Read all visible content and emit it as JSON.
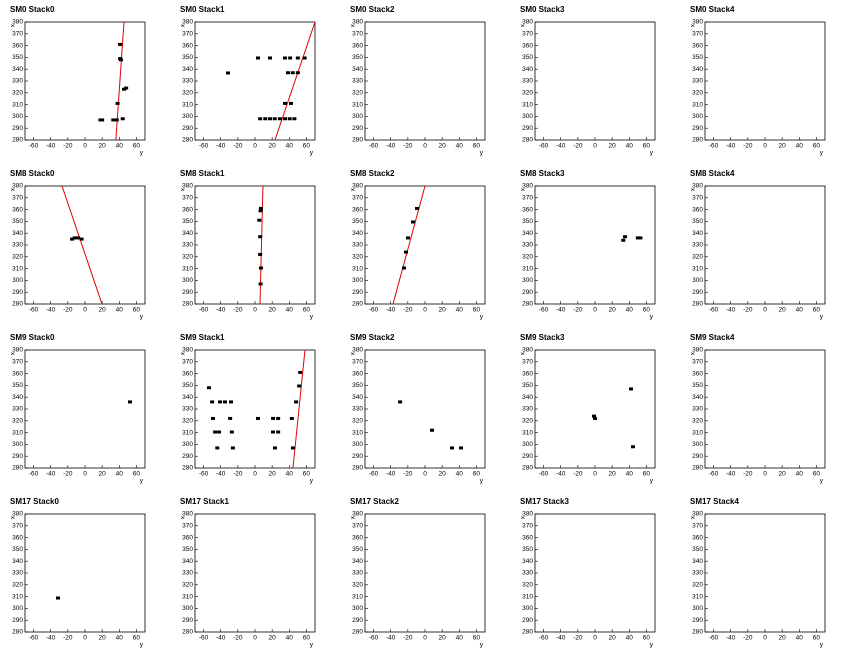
{
  "chart_data": [
    {
      "type": "scatter",
      "title": "SM0 Stack0",
      "x_label": "y",
      "y_label": "x",
      "xlim": [
        -70,
        70
      ],
      "ylim": [
        280,
        380
      ],
      "xticks": [
        -60,
        -40,
        -20,
        0,
        20,
        40,
        60
      ],
      "yticks": [
        280,
        290,
        300,
        310,
        320,
        330,
        340,
        350,
        360,
        370,
        380
      ],
      "color": "#000000",
      "x": [
        18,
        20,
        33,
        37,
        44,
        38,
        45.5,
        48,
        41,
        42,
        41
      ],
      "y": [
        297,
        297,
        297,
        297,
        298,
        311,
        323,
        324,
        349,
        348,
        361
      ],
      "fit": {
        "x": [
          36,
          45.5
        ],
        "y": [
          280,
          380
        ],
        "color": "#e00000"
      }
    },
    {
      "type": "scatter",
      "title": "SM0 Stack1",
      "x_label": "y",
      "y_label": "x",
      "xlim": [
        -70,
        70
      ],
      "ylim": [
        280,
        380
      ],
      "xticks": [
        -60,
        -40,
        -20,
        0,
        20,
        40,
        60
      ],
      "yticks": [
        280,
        290,
        300,
        310,
        320,
        330,
        340,
        350,
        360,
        370,
        380
      ],
      "color": "#000000",
      "x": [
        -31.5,
        3.5,
        17.5,
        35,
        41,
        50,
        58,
        38.5,
        44,
        50,
        35,
        42,
        6,
        12,
        17.5,
        23,
        29,
        35,
        40.5,
        46
      ],
      "y": [
        336.8,
        349.5,
        349.5,
        349.5,
        349.5,
        349.5,
        349.5,
        337,
        337,
        337,
        311,
        311,
        298,
        298,
        298,
        298,
        298,
        298,
        298,
        298
      ],
      "fit": {
        "x": [
          23.3,
          70
        ],
        "y": [
          280,
          380
        ],
        "color": "#e00000"
      }
    },
    {
      "type": "scatter",
      "title": "SM0 Stack2",
      "x_label": "y",
      "y_label": "x",
      "xlim": [
        -70,
        70
      ],
      "ylim": [
        280,
        380
      ],
      "xticks": [
        -60,
        -40,
        -20,
        0,
        20,
        40,
        60
      ],
      "yticks": [
        280,
        290,
        300,
        310,
        320,
        330,
        340,
        350,
        360,
        370,
        380
      ],
      "color": "#000000",
      "x": [],
      "y": []
    },
    {
      "type": "scatter",
      "title": "SM0 Stack3",
      "x_label": "y",
      "y_label": "x",
      "xlim": [
        -70,
        70
      ],
      "ylim": [
        280,
        380
      ],
      "xticks": [
        -60,
        -40,
        -20,
        0,
        20,
        40,
        60
      ],
      "yticks": [
        280,
        290,
        300,
        310,
        320,
        330,
        340,
        350,
        360,
        370,
        380
      ],
      "color": "#000000",
      "x": [],
      "y": []
    },
    {
      "type": "scatter",
      "title": "SM0 Stack4",
      "x_label": "y",
      "y_label": "x",
      "xlim": [
        -70,
        70
      ],
      "ylim": [
        280,
        380
      ],
      "xticks": [
        -60,
        -40,
        -20,
        0,
        20,
        40,
        60
      ],
      "yticks": [
        280,
        290,
        300,
        310,
        320,
        330,
        340,
        350,
        360,
        370,
        380
      ],
      "color": "#000000",
      "x": [],
      "y": []
    },
    {
      "type": "scatter",
      "title": "SM8 Stack0",
      "x_label": "y",
      "y_label": "x",
      "xlim": [
        -70,
        70
      ],
      "ylim": [
        280,
        380
      ],
      "xticks": [
        -60,
        -40,
        -20,
        0,
        20,
        40,
        60
      ],
      "yticks": [
        280,
        290,
        300,
        310,
        320,
        330,
        340,
        350,
        360,
        370,
        380
      ],
      "color": "#000000",
      "x": [
        -15,
        -12,
        -8,
        -4
      ],
      "y": [
        335,
        336,
        336,
        335
      ],
      "fit": {
        "x": [
          -26.8,
          19.8
        ],
        "y": [
          380,
          280
        ],
        "color": "#e00000"
      }
    },
    {
      "type": "scatter",
      "title": "SM8 Stack1",
      "x_label": "y",
      "y_label": "x",
      "xlim": [
        -70,
        70
      ],
      "ylim": [
        280,
        380
      ],
      "xticks": [
        -60,
        -40,
        -20,
        0,
        20,
        40,
        60
      ],
      "yticks": [
        280,
        290,
        300,
        310,
        320,
        330,
        340,
        350,
        360,
        370,
        380
      ],
      "color": "#000000",
      "x": [
        7,
        6.5,
        5,
        6,
        6,
        7,
        6.5
      ],
      "y": [
        361,
        359,
        351,
        337,
        322,
        310.5,
        297
      ],
      "fit": {
        "x": [
          9.3,
          5.8
        ],
        "y": [
          380,
          280
        ],
        "color": "#e00000"
      }
    },
    {
      "type": "scatter",
      "title": "SM8 Stack2",
      "x_label": "y",
      "y_label": "x",
      "xlim": [
        -70,
        70
      ],
      "ylim": [
        280,
        380
      ],
      "xticks": [
        -60,
        -40,
        -20,
        0,
        20,
        40,
        60
      ],
      "yticks": [
        280,
        290,
        300,
        310,
        320,
        330,
        340,
        350,
        360,
        370,
        380
      ],
      "color": "#000000",
      "x": [
        -9.3,
        -14,
        -19.8,
        -22.2,
        -24.5
      ],
      "y": [
        361,
        349.5,
        336,
        324,
        310.5
      ],
      "fit": {
        "x": [
          0,
          -37.3
        ],
        "y": [
          380,
          280
        ],
        "color": "#e00000"
      }
    },
    {
      "type": "scatter",
      "title": "SM8 Stack3",
      "x_label": "y",
      "y_label": "x",
      "xlim": [
        -70,
        70
      ],
      "ylim": [
        280,
        380
      ],
      "xticks": [
        -60,
        -40,
        -20,
        0,
        20,
        40,
        60
      ],
      "yticks": [
        280,
        290,
        300,
        310,
        320,
        330,
        340,
        350,
        360,
        370,
        380
      ],
      "color": "#000000",
      "x": [
        33,
        35,
        50,
        53
      ],
      "y": [
        334,
        337,
        336,
        336
      ]
    },
    {
      "type": "scatter",
      "title": "SM8 Stack4",
      "x_label": "y",
      "y_label": "x",
      "xlim": [
        -70,
        70
      ],
      "ylim": [
        280,
        380
      ],
      "xticks": [
        -60,
        -40,
        -20,
        0,
        20,
        40,
        60
      ],
      "yticks": [
        280,
        290,
        300,
        310,
        320,
        330,
        340,
        350,
        360,
        370,
        380
      ],
      "color": "#000000",
      "x": [],
      "y": []
    },
    {
      "type": "scatter",
      "title": "SM9 Stack0",
      "x_label": "y",
      "y_label": "x",
      "xlim": [
        -70,
        70
      ],
      "ylim": [
        280,
        380
      ],
      "xticks": [
        -60,
        -40,
        -20,
        0,
        20,
        40,
        60
      ],
      "yticks": [
        280,
        290,
        300,
        310,
        320,
        330,
        340,
        350,
        360,
        370,
        380
      ],
      "color": "#000000",
      "x": [
        52.5
      ],
      "y": [
        336
      ]
    },
    {
      "type": "scatter",
      "title": "SM9 Stack1",
      "x_label": "y",
      "y_label": "x",
      "xlim": [
        -70,
        70
      ],
      "ylim": [
        280,
        380
      ],
      "xticks": [
        -60,
        -40,
        -20,
        0,
        20,
        40,
        60
      ],
      "yticks": [
        280,
        290,
        300,
        310,
        320,
        330,
        340,
        350,
        360,
        370,
        380
      ],
      "color": "#000000",
      "x": [
        -53.7,
        -50,
        -40.8,
        -35,
        -28,
        -49,
        -29,
        -46.5,
        -42,
        -27,
        -44,
        -25.8,
        3.5,
        21,
        27,
        21,
        27,
        23.3,
        43,
        44.3,
        48,
        51.5,
        52.7
      ],
      "y": [
        348,
        336,
        336,
        336,
        336,
        322,
        322,
        310.5,
        310.5,
        310.5,
        297,
        297,
        322,
        322,
        322,
        310.5,
        310.5,
        297,
        322,
        297,
        336,
        349.5,
        361
      ],
      "fit": {
        "x": [
          44.3,
          58.3
        ],
        "y": [
          280,
          380
        ],
        "color": "#e00000"
      }
    },
    {
      "type": "scatter",
      "title": "SM9 Stack2",
      "x_label": "y",
      "y_label": "x",
      "xlim": [
        -70,
        70
      ],
      "ylim": [
        280,
        380
      ],
      "xticks": [
        -60,
        -40,
        -20,
        0,
        20,
        40,
        60
      ],
      "yticks": [
        280,
        290,
        300,
        310,
        320,
        330,
        340,
        350,
        360,
        370,
        380
      ],
      "color": "#000000",
      "x": [
        -29,
        8.2,
        31.5,
        42
      ],
      "y": [
        336,
        312,
        297,
        297
      ]
    },
    {
      "type": "scatter",
      "title": "SM9 Stack3",
      "x_label": "y",
      "y_label": "x",
      "xlim": [
        -70,
        70
      ],
      "ylim": [
        280,
        380
      ],
      "xticks": [
        -60,
        -40,
        -20,
        0,
        20,
        40,
        60
      ],
      "yticks": [
        280,
        290,
        300,
        310,
        320,
        330,
        340,
        350,
        360,
        370,
        380
      ],
      "color": "#000000",
      "x": [
        -1.2,
        0,
        42,
        44.3
      ],
      "y": [
        324,
        322,
        347,
        298
      ]
    },
    {
      "type": "scatter",
      "title": "SM9 Stack4",
      "x_label": "y",
      "y_label": "x",
      "xlim": [
        -70,
        70
      ],
      "ylim": [
        280,
        380
      ],
      "xticks": [
        -60,
        -40,
        -20,
        0,
        20,
        40,
        60
      ],
      "yticks": [
        280,
        290,
        300,
        310,
        320,
        330,
        340,
        350,
        360,
        370,
        380
      ],
      "color": "#000000",
      "x": [],
      "y": []
    },
    {
      "type": "scatter",
      "title": "SM17 Stack0",
      "x_label": "y",
      "y_label": "x",
      "xlim": [
        -70,
        70
      ],
      "ylim": [
        280,
        380
      ],
      "xticks": [
        -60,
        -40,
        -20,
        0,
        20,
        40,
        60
      ],
      "yticks": [
        280,
        290,
        300,
        310,
        320,
        330,
        340,
        350,
        360,
        370,
        380
      ],
      "color": "#000000",
      "x": [
        -31.5
      ],
      "y": [
        308.8
      ]
    },
    {
      "type": "scatter",
      "title": "SM17 Stack1",
      "x_label": "y",
      "y_label": "x",
      "xlim": [
        -70,
        70
      ],
      "ylim": [
        280,
        380
      ],
      "xticks": [
        -60,
        -40,
        -20,
        0,
        20,
        40,
        60
      ],
      "yticks": [
        280,
        290,
        300,
        310,
        320,
        330,
        340,
        350,
        360,
        370,
        380
      ],
      "color": "#000000",
      "x": [],
      "y": []
    },
    {
      "type": "scatter",
      "title": "SM17 Stack2",
      "x_label": "y",
      "y_label": "x",
      "xlim": [
        -70,
        70
      ],
      "ylim": [
        280,
        380
      ],
      "xticks": [
        -60,
        -40,
        -20,
        0,
        20,
        40,
        60
      ],
      "yticks": [
        280,
        290,
        300,
        310,
        320,
        330,
        340,
        350,
        360,
        370,
        380
      ],
      "color": "#000000",
      "x": [],
      "y": []
    },
    {
      "type": "scatter",
      "title": "SM17 Stack3",
      "x_label": "y",
      "y_label": "x",
      "xlim": [
        -70,
        70
      ],
      "ylim": [
        280,
        380
      ],
      "xticks": [
        -60,
        -40,
        -20,
        0,
        20,
        40,
        60
      ],
      "yticks": [
        280,
        290,
        300,
        310,
        320,
        330,
        340,
        350,
        360,
        370,
        380
      ],
      "color": "#000000",
      "x": [],
      "y": []
    },
    {
      "type": "scatter",
      "title": "SM17 Stack4",
      "x_label": "y",
      "y_label": "x",
      "xlim": [
        -70,
        70
      ],
      "ylim": [
        280,
        380
      ],
      "xticks": [
        -60,
        -40,
        -20,
        0,
        20,
        40,
        60
      ],
      "yticks": [
        280,
        290,
        300,
        310,
        320,
        330,
        340,
        350,
        360,
        370,
        380
      ],
      "color": "#000000",
      "x": [],
      "y": []
    }
  ]
}
